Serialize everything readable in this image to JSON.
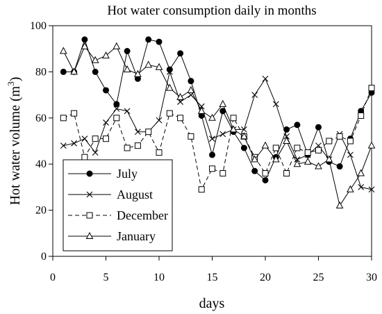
{
  "chart_data": {
    "type": "line",
    "title": "Hot water consumption daily in months",
    "xlabel": "days",
    "ylabel": "Hot water volume (m",
    "ylabel_sup": "3",
    "ylabel_end": ")",
    "xlim": [
      0,
      30
    ],
    "ylim": [
      0,
      100
    ],
    "xticks": [
      0,
      5,
      10,
      15,
      20,
      25,
      30
    ],
    "yticks": [
      0,
      20,
      40,
      60,
      80,
      100
    ],
    "grid": false,
    "legend_position": "bottom-left",
    "x": [
      1,
      2,
      3,
      4,
      5,
      6,
      7,
      8,
      9,
      10,
      11,
      12,
      13,
      14,
      15,
      16,
      17,
      18,
      19,
      20,
      21,
      22,
      23,
      24,
      25,
      26,
      27,
      28,
      29,
      30
    ],
    "series": [
      {
        "name": "July",
        "marker": "filled-circle",
        "dash": "solid",
        "values": [
          80,
          80,
          94,
          80,
          72,
          66,
          89,
          77,
          94,
          93,
          81,
          88,
          76,
          61,
          44,
          63,
          54,
          47,
          37,
          33,
          43,
          55,
          57,
          44,
          56,
          41,
          39,
          51,
          63,
          71
        ]
      },
      {
        "name": "August",
        "marker": "x",
        "dash": "solid",
        "values": [
          48,
          49,
          51,
          45,
          58,
          64,
          63,
          54,
          54,
          59,
          80,
          67,
          70,
          65,
          51,
          53,
          55,
          55,
          70,
          77,
          66,
          52,
          42,
          44,
          48,
          42,
          53,
          44,
          30,
          29
        ]
      },
      {
        "name": "December",
        "marker": "open-square",
        "dash": "dashed",
        "values": [
          60,
          62,
          43,
          51,
          51,
          60,
          47,
          48,
          54,
          45,
          62,
          60,
          52,
          29,
          38,
          36,
          60,
          52,
          43,
          36,
          47,
          36,
          47,
          45,
          46,
          50,
          52,
          50,
          61,
          73
        ]
      },
      {
        "name": "January",
        "marker": "open-triangle",
        "dash": "solid",
        "values": [
          89,
          80,
          91,
          85,
          87,
          91,
          81,
          79,
          83,
          82,
          73,
          69,
          72,
          63,
          60,
          66,
          55,
          52,
          42,
          48,
          42,
          50,
          40,
          41,
          39,
          42,
          22,
          29,
          36,
          48
        ]
      }
    ]
  }
}
